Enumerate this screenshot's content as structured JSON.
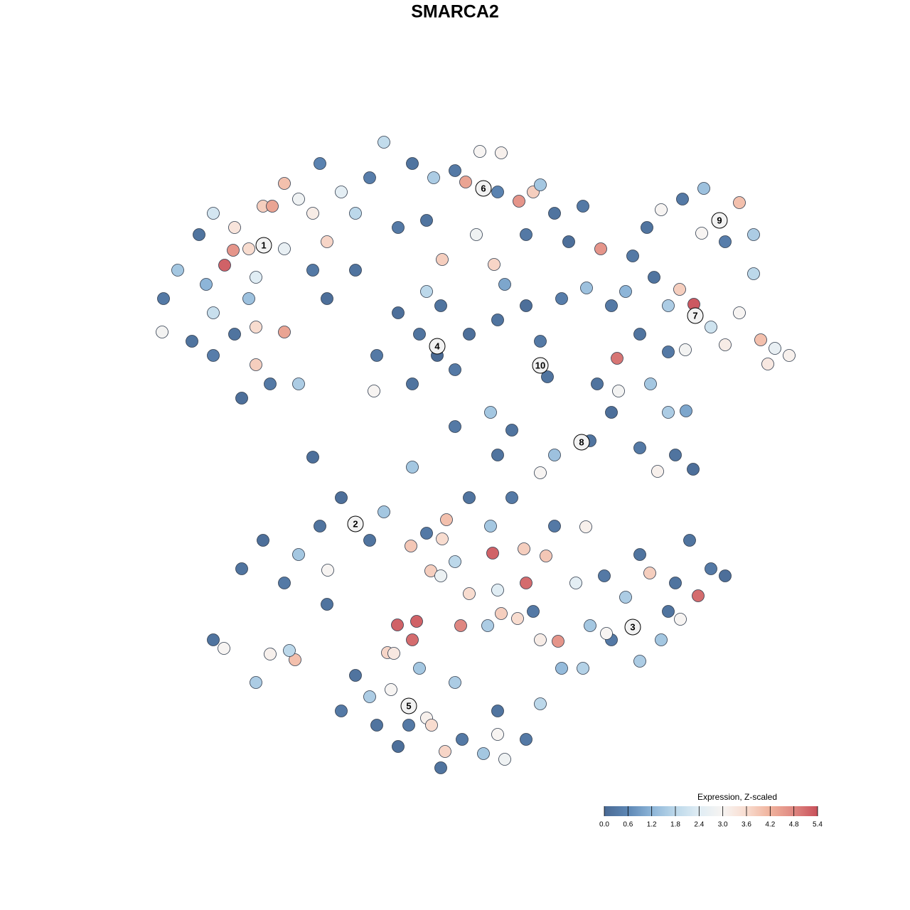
{
  "chart_data": {
    "type": "scatter",
    "title": "SMARCA2",
    "xlim": [
      -64,
      64
    ],
    "ylim": [
      -64,
      64
    ],
    "x": [
      -41,
      -39,
      -36,
      -34,
      -31,
      -32.4,
      -31.2,
      -29,
      -27,
      -24,
      -22,
      -20,
      -18,
      -16,
      -14,
      -12,
      -10,
      -8,
      -34,
      -31,
      -28,
      -24,
      -28,
      -26,
      -30,
      -22,
      -37,
      -41.2,
      -34,
      -29,
      -19,
      -24,
      -20,
      -14,
      -28,
      -25.7,
      -35,
      -18,
      -6,
      -3,
      0,
      1.5,
      6,
      9,
      11,
      14,
      18,
      3,
      -1.8,
      5.5,
      7,
      10,
      12,
      3.5,
      6.5,
      -4,
      16,
      32,
      35,
      40,
      42,
      38,
      29,
      27,
      34.7,
      42,
      25,
      20.5,
      24,
      28,
      31.6,
      33.6,
      30,
      36,
      40,
      43,
      45,
      47,
      44,
      38,
      32.4,
      26,
      22.8,
      27.5,
      30,
      22,
      -8,
      -5,
      -2.5,
      0,
      -2,
      2,
      -11,
      -6,
      -11.4,
      -4,
      6,
      10,
      12,
      13,
      15,
      18.5,
      5,
      8,
      20,
      22,
      19,
      14,
      26,
      28.5,
      31,
      33.5,
      30,
      32.5,
      12,
      6,
      23,
      -20,
      -6,
      0,
      -30,
      -27,
      -24,
      -22,
      -19,
      -16,
      -17.9,
      -12,
      -10,
      -34,
      -32.5,
      -26,
      -22.5,
      -28,
      -23.3,
      -18,
      -4,
      -1.2,
      -1.8,
      -6.2,
      -3.4,
      0,
      5.3,
      10,
      9.7,
      12.8,
      6,
      2,
      6.5,
      8.8,
      0.8,
      -8.1,
      -5.4,
      -6,
      -9.5,
      -2,
      5,
      8,
      2,
      14,
      18.4,
      17,
      11,
      4.6,
      12,
      14.5,
      21,
      24,
      27.4,
      31,
      34.2,
      36,
      38,
      31.7,
      29,
      26,
      22,
      21.3,
      18,
      15,
      33,
      26,
      30,
      19,
      -14,
      -12,
      -9,
      -6.5,
      -4,
      -3.3,
      -1.4,
      1,
      4,
      6,
      7,
      -2,
      -8,
      -11,
      0,
      10,
      6,
      12,
      -16,
      -5,
      -8.6
    ],
    "y": [
      22,
      26,
      31,
      34,
      32,
      26.7,
      28.8,
      29,
      35,
      38.2,
      36,
      34,
      30,
      37,
      34,
      39,
      44,
      32,
      20,
      17,
      18,
      17.3,
      12.7,
      10,
      8,
      10,
      16,
      17.3,
      14,
      22,
      41,
      29,
      26,
      26,
      25,
      35,
      24,
      22,
      41,
      39,
      40,
      38.4,
      37,
      35.7,
      37,
      34,
      35,
      31,
      27.5,
      26.8,
      24,
      31,
      38,
      42.7,
      42.5,
      33,
      30,
      36,
      37.5,
      35.5,
      31,
      30,
      34.5,
      32,
      31.2,
      25.5,
      28,
      29,
      23,
      25,
      23.3,
      21.2,
      21,
      18,
      20,
      16.2,
      15,
      14,
      12.8,
      15.5,
      14.8,
      17,
      13.6,
      10,
      14.5,
      21,
      20,
      17,
      14,
      12,
      21,
      17,
      14,
      10,
      9,
      23,
      19,
      21,
      16,
      11,
      22,
      23.5,
      6,
      3.5,
      10,
      6,
      2,
      0,
      1,
      -2.3,
      0,
      -2,
      6,
      6.2,
      -2.5,
      0,
      9,
      -0.3,
      -1.7,
      4,
      -16,
      -12,
      -18,
      -14,
      -10,
      -6,
      -16.2,
      -12,
      -8,
      -26,
      -27.2,
      -28,
      -28.8,
      -32,
      -27.5,
      -21,
      -11,
      -9.1,
      -11.8,
      -12.8,
      -16.3,
      -15,
      -13.8,
      -18,
      -13.2,
      -14.2,
      -19,
      -19.5,
      -22.3,
      -23,
      -24,
      -23.9,
      -23.4,
      -26,
      -27.8,
      -17,
      -10,
      -6,
      -6,
      -10,
      -10.1,
      -18,
      -22,
      -24,
      -26,
      -26.2,
      -17,
      -20,
      -16.6,
      -18,
      -19.8,
      -16,
      -17,
      -23.1,
      -26,
      -29,
      -26,
      -25.1,
      -30,
      -30,
      -12,
      -14,
      -22,
      -24,
      -31,
      -34,
      -33,
      -38,
      -37,
      -38,
      -41.7,
      -40,
      -42,
      -39.3,
      -42.8,
      -44,
      -41,
      -38,
      -32,
      -40,
      -36,
      -35,
      -36,
      -30,
      -27.9
    ],
    "values": [
      0.3,
      1.5,
      0.2,
      2.2,
      3.4,
      5.2,
      4.6,
      3.6,
      3.8,
      4.0,
      2.8,
      3.2,
      3.7,
      2.5,
      1.8,
      0.4,
      1.9,
      0.3,
      2.0,
      0.2,
      3.6,
      4.4,
      3.8,
      0.3,
      0.1,
      1.6,
      0.2,
      2.9,
      0.4,
      1.4,
      0.5,
      2.6,
      0.3,
      0.2,
      2.4,
      4.4,
      1.2,
      0.1,
      0.2,
      1.6,
      0.3,
      4.4,
      0.5,
      4.6,
      3.8,
      0.2,
      0.3,
      2.8,
      3.8,
      3.7,
      1.0,
      0.3,
      1.5,
      3.0,
      3.1,
      0.2,
      0.1,
      0.3,
      1.4,
      4.0,
      1.6,
      0.4,
      3.0,
      0.2,
      3.0,
      1.8,
      0.3,
      4.6,
      1.2,
      0.2,
      3.8,
      5.3,
      1.6,
      2.1,
      3.0,
      4.0,
      2.6,
      3.1,
      3.3,
      3.2,
      2.9,
      0.2,
      5.0,
      1.5,
      0.3,
      0.3,
      0.1,
      0.2,
      0.0,
      0.3,
      0.2,
      0.1,
      0.3,
      0.2,
      3.0,
      1.8,
      0.2,
      0.1,
      0.3,
      0.2,
      0.4,
      1.4,
      1.5,
      0.2,
      0.2,
      0.1,
      0.2,
      1.4,
      0.3,
      3.1,
      0.2,
      0.1,
      1.6,
      1.0,
      3.0,
      0.2,
      2.9,
      0.1,
      1.5,
      0.3,
      0.2,
      0.1,
      0.3,
      1.5,
      0.2,
      0.1,
      3.0,
      0.2,
      1.5,
      0.2,
      3.0,
      3.1,
      4.0,
      1.6,
      1.8,
      0.2,
      0.3,
      4.0,
      3.6,
      3.9,
      3.8,
      1.8,
      5.2,
      5.1,
      3.8,
      3.9,
      2.4,
      3.6,
      3.8,
      3.6,
      4.8,
      5.2,
      5.2,
      5.1,
      3.7,
      2.7,
      1.5,
      0.3,
      0.2,
      0.3,
      3.1,
      2.5,
      0.3,
      1.6,
      3.2,
      4.6,
      0.3,
      1.6,
      3.8,
      0.2,
      5.1,
      0.3,
      0.1,
      3.0,
      1.5,
      1.6,
      0.3,
      3.0,
      1.7,
      1.3,
      0.2,
      0.2,
      0.2,
      1.5,
      0.2,
      1.6,
      3.0,
      0.3,
      3.1,
      3.6,
      3.7,
      0.3,
      1.5,
      3.0,
      2.8,
      0.2,
      0.1,
      0.2,
      1.6,
      0.3,
      0.2,
      1.8,
      0.3,
      1.5,
      3.3
    ],
    "annotations": [
      {
        "text": "1",
        "x": -26.9,
        "y": 29.5
      },
      {
        "text": "2",
        "x": -14,
        "y": -9.7
      },
      {
        "text": "3",
        "x": 25,
        "y": -24.2
      },
      {
        "text": "4",
        "x": -2.5,
        "y": 15.3
      },
      {
        "text": "5",
        "x": -6.5,
        "y": -35.3
      },
      {
        "text": "6",
        "x": 4,
        "y": 37.5
      },
      {
        "text": "7",
        "x": 33.8,
        "y": 19.6
      },
      {
        "text": "8",
        "x": 17.8,
        "y": 1.8
      },
      {
        "text": "9",
        "x": 37.2,
        "y": 33
      },
      {
        "text": "10",
        "x": 12,
        "y": 12.6
      }
    ],
    "colorbar": {
      "title": "Expression, Z-scaled",
      "clim": [
        0,
        5.4
      ],
      "ticks": [
        {
          "value": 0,
          "label": "0.0"
        },
        0.6,
        1.2,
        1.8,
        2.4,
        {
          "value": 3,
          "label": "3.0"
        },
        3.6,
        4.2,
        4.8,
        5.4
      ],
      "colors": [
        "#4a6a94",
        "#5d87b5",
        "#8db5d8",
        "#bcd8ea",
        "#e0edf4",
        "#f7f4f2",
        "#f8dccf",
        "#f0b29c",
        "#df8781",
        "#c8505a"
      ]
    }
  }
}
